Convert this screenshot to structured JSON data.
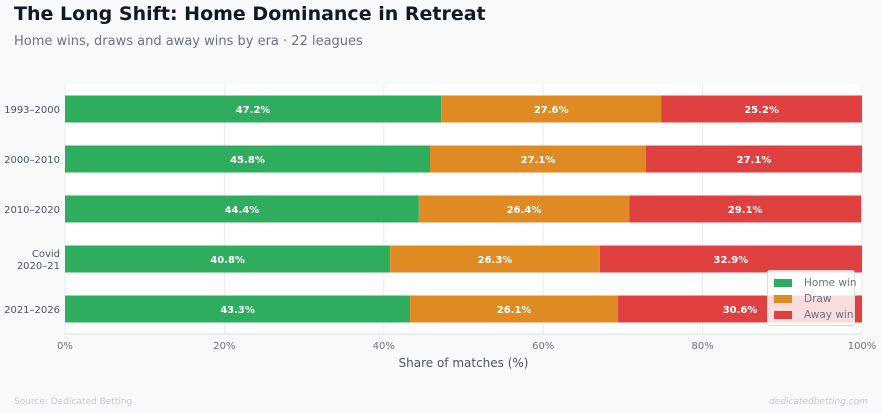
{
  "header": {
    "title": "The Long Shift: Home Dominance in Retreat",
    "subtitle": "Home wins, draws and away wins by era · 22 leagues"
  },
  "footer": {
    "source": "Source: Dedicated Betting",
    "site": "dedicatedbetting.com"
  },
  "chart_data": {
    "type": "bar",
    "orientation": "horizontal",
    "stacked": true,
    "categories": [
      "1993–2000",
      "2000–2010",
      "2010–2020",
      "Covid\n2020–21",
      "2021–2026"
    ],
    "series": [
      {
        "name": "Home win",
        "color": "#2fad5f",
        "values": [
          47.2,
          45.8,
          44.4,
          40.8,
          43.3
        ]
      },
      {
        "name": "Draw",
        "color": "#e08a24",
        "values": [
          27.6,
          27.1,
          26.4,
          26.3,
          26.1
        ]
      },
      {
        "name": "Away win",
        "color": "#e04040",
        "values": [
          25.2,
          27.1,
          29.1,
          32.9,
          30.6
        ]
      }
    ],
    "value_suffix": "%",
    "xlabel": "Share of matches (%)",
    "xlim": [
      0,
      100
    ],
    "xticks": [
      "0%",
      "20%",
      "40%",
      "60%",
      "80%",
      "100%"
    ],
    "xtick_values": [
      0,
      20,
      40,
      60,
      80,
      100
    ],
    "grid": true,
    "legend_position": "bottom-right"
  }
}
